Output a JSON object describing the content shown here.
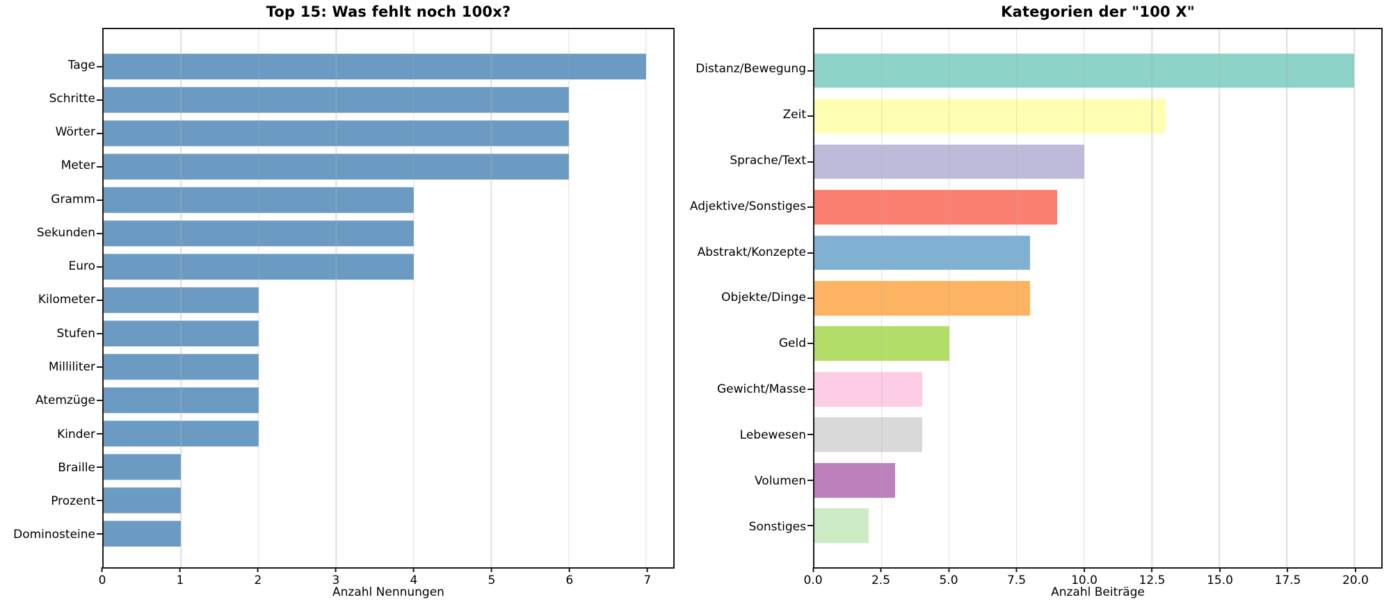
{
  "figure": {
    "background": "#ffffff",
    "spine_color": "#1a1a1a",
    "grid_color": "#b0b0b0",
    "text_color": "#000000"
  },
  "chart_data": [
    {
      "type": "bar",
      "orientation": "horizontal",
      "title": "Top 15: Was fehlt noch 100x?",
      "xlabel": "Anzahl Nennungen",
      "categories": [
        "Tage",
        "Schritte",
        "Wörter",
        "Meter",
        "Gramm",
        "Sekunden",
        "Euro",
        "Kilometer",
        "Stufen",
        "Milliliter",
        "Atemzüge",
        "Kinder",
        "Braille",
        "Prozent",
        "Dominosteine"
      ],
      "values": [
        7,
        6,
        6,
        6,
        4,
        4,
        4,
        2,
        2,
        2,
        2,
        2,
        1,
        1,
        1
      ],
      "bar_color": "#6b9bc3",
      "xlim": [
        0,
        7.35
      ],
      "xticks": [
        0,
        1,
        2,
        3,
        4,
        5,
        6,
        7
      ],
      "xtick_labels": [
        "0",
        "1",
        "2",
        "3",
        "4",
        "5",
        "6",
        "7"
      ],
      "grid": true,
      "legend_position": "none"
    },
    {
      "type": "bar",
      "orientation": "horizontal",
      "title": "Kategorien der \"100 X\"",
      "xlabel": "Anzahl Beiträge",
      "categories": [
        "Distanz/Bewegung",
        "Zeit",
        "Sprache/Text",
        "Adjektive/Sonstiges",
        "Abstrakt/Konzepte",
        "Objekte/Dinge",
        "Geld",
        "Gewicht/Masse",
        "Lebewesen",
        "Volumen",
        "Sonstiges"
      ],
      "values": [
        20,
        13,
        10,
        9,
        8,
        8,
        5,
        4,
        4,
        3,
        2
      ],
      "bar_colors": [
        "#8dd3c7",
        "#ffffb3",
        "#bebada",
        "#fb8072",
        "#80b1d3",
        "#fdb462",
        "#b3de69",
        "#fccde5",
        "#d9d9d9",
        "#bc80bd",
        "#ccebc5"
      ],
      "xlim": [
        0,
        21
      ],
      "xticks": [
        0,
        2.5,
        5,
        7.5,
        10,
        12.5,
        15,
        17.5,
        20
      ],
      "xtick_labels": [
        "0.0",
        "2.5",
        "5.0",
        "7.5",
        "10.0",
        "12.5",
        "15.0",
        "17.5",
        "20.0"
      ],
      "grid": true,
      "legend_position": "none"
    }
  ]
}
